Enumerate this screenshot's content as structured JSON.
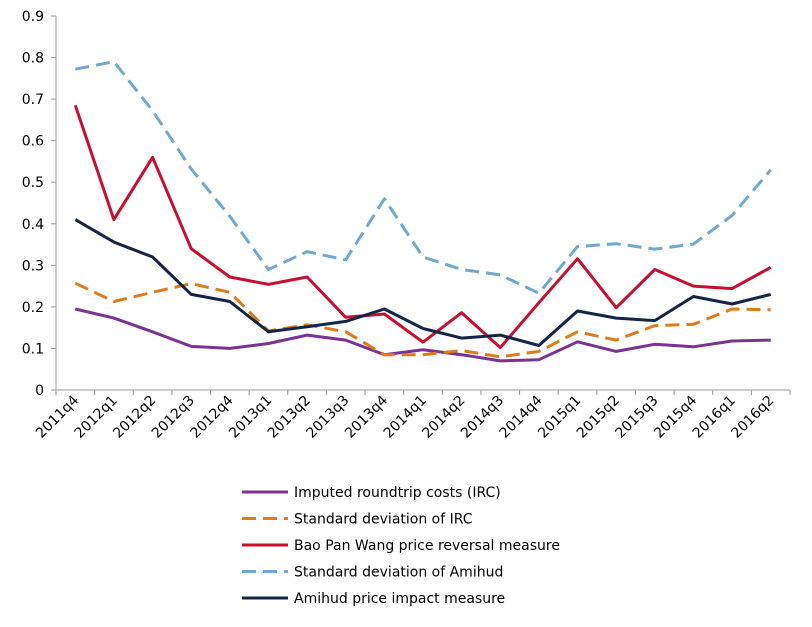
{
  "chart_data": {
    "type": "line",
    "title": "",
    "xlabel": "",
    "ylabel": "",
    "ylim": [
      0,
      0.9
    ],
    "yticks": [
      "0",
      "0.1",
      "0.2",
      "0.3",
      "0.4",
      "0.5",
      "0.6",
      "0.7",
      "0.8",
      "0.9"
    ],
    "grid": false,
    "legend_position": "bottom",
    "categories": [
      "2011q4",
      "2012q1",
      "2012q2",
      "2012q3",
      "2012q4",
      "2013q1",
      "2013q2",
      "2013q3",
      "2013q4",
      "2014q1",
      "2014q2",
      "2014q3",
      "2014q4",
      "2015q1",
      "2015q2",
      "2015q3",
      "2015q4",
      "2016q1",
      "2016q2"
    ],
    "series": [
      {
        "name": "Imputed roundtrip costs (IRC)",
        "color": "#7b3294",
        "dash": "solid",
        "values": [
          0.195,
          0.173,
          0.14,
          0.105,
          0.1,
          0.112,
          0.132,
          0.12,
          0.085,
          0.097,
          0.085,
          0.07,
          0.073,
          0.116,
          0.093,
          0.11,
          0.104,
          0.118,
          0.12
        ]
      },
      {
        "name": "Standard deviation of IRC",
        "color": "#e07b17",
        "dash": "dashed",
        "values": [
          0.257,
          0.213,
          0.235,
          0.256,
          0.235,
          0.142,
          0.157,
          0.14,
          0.085,
          0.085,
          0.095,
          0.08,
          0.093,
          0.14,
          0.12,
          0.155,
          0.158,
          0.195,
          0.193
        ]
      },
      {
        "name": "Bao Pan Wang price reversal measure",
        "color": "#c8102e",
        "dash": "solid",
        "values": [
          0.685,
          0.41,
          0.56,
          0.34,
          0.272,
          0.254,
          0.272,
          0.175,
          0.183,
          0.115,
          0.186,
          0.102,
          0.21,
          0.316,
          0.198,
          0.29,
          0.25,
          0.244,
          0.295
        ]
      },
      {
        "name": "Standard deviation of Amihud",
        "color": "#6fa8d3",
        "dash": "dashed",
        "values": [
          0.772,
          0.79,
          0.672,
          0.532,
          0.418,
          0.29,
          0.333,
          0.313,
          0.46,
          0.32,
          0.29,
          0.277,
          0.233,
          0.345,
          0.352,
          0.339,
          0.351,
          0.42,
          0.53
        ]
      },
      {
        "name": "Amihud price impact measure",
        "color": "#14254a",
        "dash": "solid",
        "values": [
          0.41,
          0.356,
          0.32,
          0.23,
          0.213,
          0.14,
          0.152,
          0.165,
          0.195,
          0.148,
          0.125,
          0.132,
          0.107,
          0.19,
          0.173,
          0.167,
          0.225,
          0.207,
          0.23
        ]
      }
    ]
  }
}
